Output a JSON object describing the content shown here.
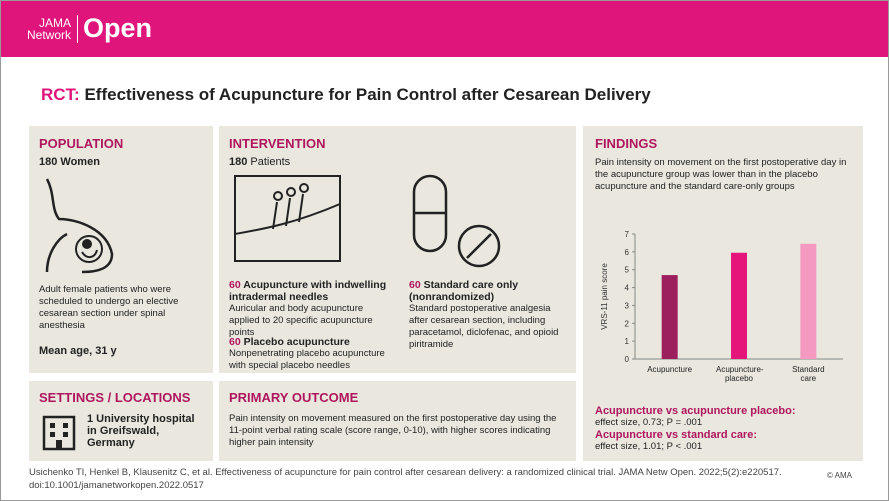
{
  "header": {
    "logo_top": "JAMA",
    "logo_bottom": "Network",
    "logo_main": "Open"
  },
  "title": {
    "prefix": "RCT:",
    "text": "Effectiveness of Acupuncture for Pain Control after Cesarean Delivery"
  },
  "population": {
    "heading": "POPULATION",
    "count": "180 Women",
    "description": "Adult female patients who were scheduled to undergo an elective cesarean section under spinal anesthesia",
    "age": "Mean age, 31 y"
  },
  "settings": {
    "heading": "SETTINGS / LOCATIONS",
    "text": "1 University hospital in Greifswald, Germany"
  },
  "intervention": {
    "heading": "INTERVENTION",
    "count_number": "180",
    "count_label": "Patients",
    "groups": [
      {
        "n": "60",
        "name": "Acupuncture with indwelling intradermal needles",
        "description": "Auricular and body acupuncture applied to 20 specific acupuncture points"
      },
      {
        "n": "60",
        "name": "Placebo acupuncture",
        "description": "Nonpenetrating placebo acupuncture with special placebo needles"
      },
      {
        "n": "60",
        "name": "Standard care only (nonrandomized)",
        "description": "Standard postoperative analgesia after cesarean section, including paracetamol, diclofenac, and opioid piritramide"
      }
    ]
  },
  "primary_outcome": {
    "heading": "PRIMARY OUTCOME",
    "text": "Pain intensity on movement measured on the first postoperative day using the 11-point verbal rating scale (score range, 0-10), with higher scores indicating higher pain intensity"
  },
  "findings": {
    "heading": "FINDINGS",
    "summary": "Pain intensity on movement on the first postoperative day in the acupuncture group was lower than in the placebo acupuncture and the standard care-only groups",
    "comparisons": [
      {
        "label": "Acupuncture vs acupuncture placebo:",
        "text": "effect size, 0.73; P = .001"
      },
      {
        "label": "Acupuncture vs standard care:",
        "text": "effect size, 1.01; P < .001"
      }
    ]
  },
  "chart_data": {
    "type": "bar",
    "y_label": "VRS-11 pain score",
    "categories": [
      "Acupuncture",
      "Acupuncture-placebo",
      "Standard care"
    ],
    "values": [
      4.7,
      5.95,
      6.45
    ],
    "colors": [
      "#9c1f5e",
      "#e5157a",
      "#f49ac1"
    ],
    "ylim": [
      0,
      7
    ],
    "yticks": [
      0,
      1,
      2,
      3,
      4,
      5,
      6,
      7
    ],
    "grid": false
  },
  "citation": {
    "text": "Usichenko TI, Henkel B, Klausenitz C, et al. Effectiveness of acupuncture for pain control after cesarean delivery: a randomized clinical trial. JAMA Netw Open. 2022;5(2):e220517. doi:10.1001/jamanetworkopen.2022.0517",
    "copyright": "© AMA"
  }
}
